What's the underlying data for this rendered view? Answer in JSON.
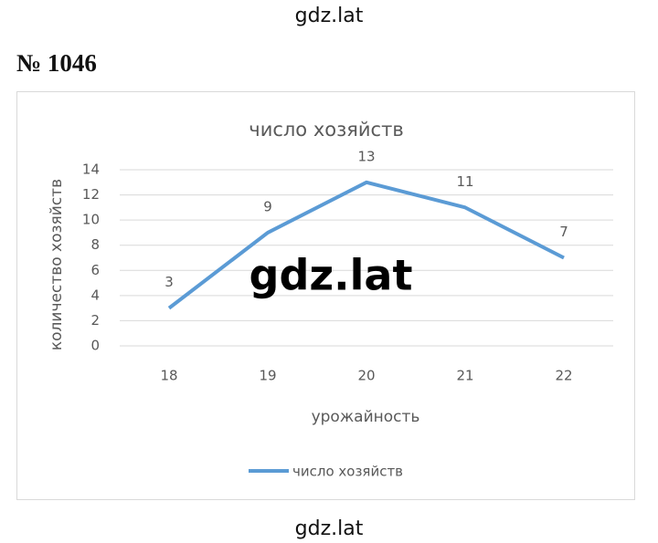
{
  "header": "gdz.lat",
  "problem_number": "№ 1046",
  "watermark": "gdz.lat",
  "footer": "gdz.lat",
  "chart_data": {
    "type": "line",
    "title": "число хозяйств",
    "x_label": "урожайность",
    "y_label": "количество хозяйств",
    "categories": [
      "18",
      "19",
      "20",
      "21",
      "22"
    ],
    "series": [
      {
        "name": "число хозяйств",
        "color": "#5b9bd5",
        "values": [
          3,
          9,
          13,
          11,
          7
        ]
      }
    ],
    "ylim": [
      0,
      14
    ],
    "yticks": [
      0,
      2,
      4,
      6,
      8,
      10,
      12,
      14
    ],
    "grid": true,
    "legend": "bottom",
    "data_labels": true
  }
}
